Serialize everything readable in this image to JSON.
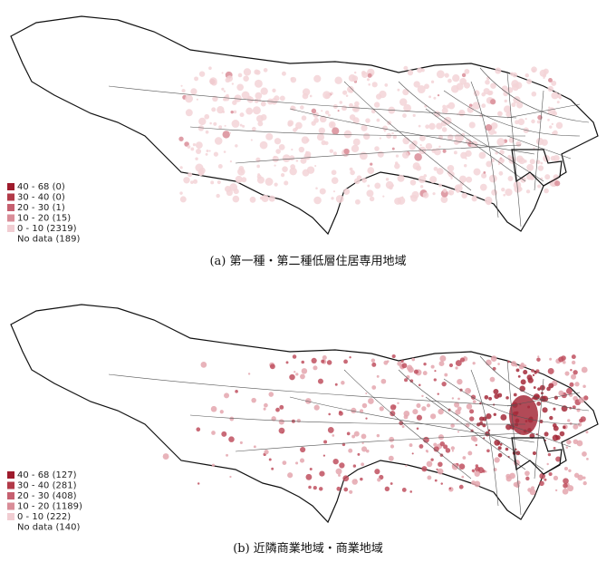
{
  "panels": [
    {
      "legend": [
        "40 - 68 (0)",
        "30 - 40 (0)",
        "20 - 30 (1)",
        "10 - 20 (15)",
        "0 - 10 (2319)",
        "No data (189)"
      ],
      "caption": "(a) 第一種・第二種低層住居専用地域"
    },
    {
      "legend": [
        "40 - 68 (127)",
        "30 - 40 (281)",
        "20 - 30 (408)",
        "10 - 20 (1189)",
        "0 - 10 (222)",
        "No data (140)"
      ],
      "caption": "(b) 近隣商業地域・商業地域"
    }
  ]
}
